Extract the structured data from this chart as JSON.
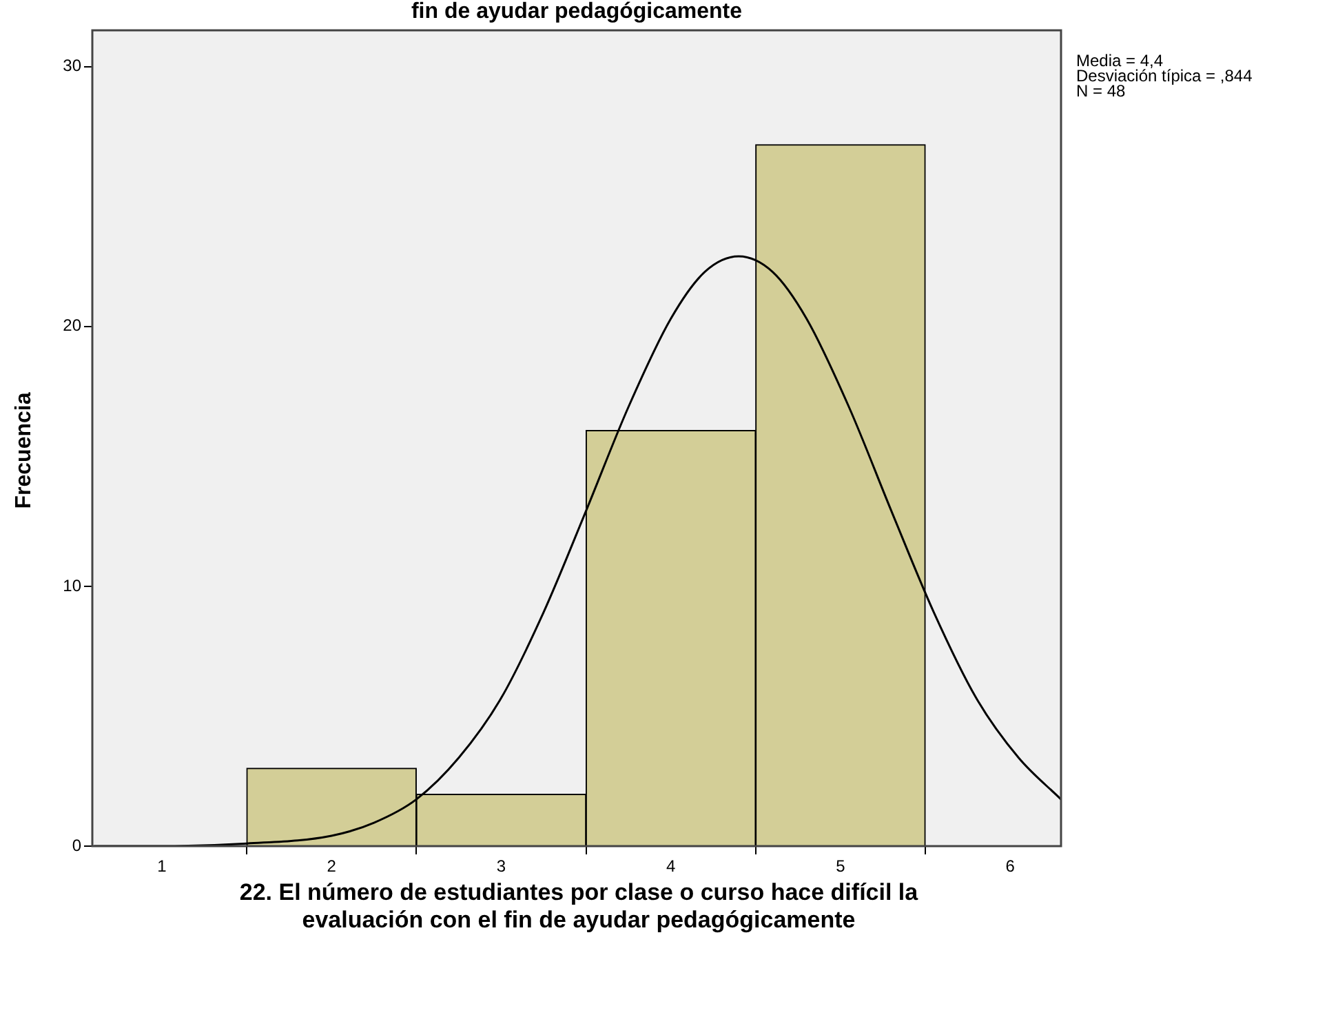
{
  "chart_data": {
    "type": "histogram",
    "title": "fin de ayudar pedagógicamente",
    "xlabel": "22. El número de estudiantes por clase o curso hace difícil la evaluación con el fin de ayudar pedagógicamente",
    "ylabel": "Frecuencia",
    "bins": [
      1.5,
      2.5,
      3.5,
      4.5,
      5.5
    ],
    "values": [
      3,
      2,
      16,
      27
    ],
    "color": "#d3ce97",
    "series": [
      {
        "type": "line",
        "color": "#000000",
        "x": [
          0.6,
          1,
          1.5,
          2,
          2.25,
          2.5,
          2.75,
          3,
          3.25,
          3.5,
          3.75,
          4,
          4.2,
          4.4,
          4.6,
          4.8,
          5.05,
          5.3,
          5.55,
          5.8,
          6.05,
          6.3
        ],
        "values": [
          0,
          0,
          0.1,
          0.4,
          0.9,
          1.8,
          3.4,
          5.7,
          9,
          12.9,
          16.9,
          20.3,
          22.1,
          22.7,
          22.1,
          20.3,
          16.9,
          12.9,
          9,
          5.7,
          3.4,
          1.8
        ]
      }
    ],
    "xlim": [
      0.59,
      6.3
    ],
    "xticks": [
      1,
      2,
      3,
      4,
      5,
      6
    ],
    "ylim": [
      0,
      31.4
    ],
    "yticks": [
      0,
      10,
      20,
      30
    ],
    "grid": false,
    "legend": false,
    "marker": "none",
    "annotations": [
      "Media = 4,4",
      "Desviación típica = ,844",
      "N = 48"
    ]
  }
}
